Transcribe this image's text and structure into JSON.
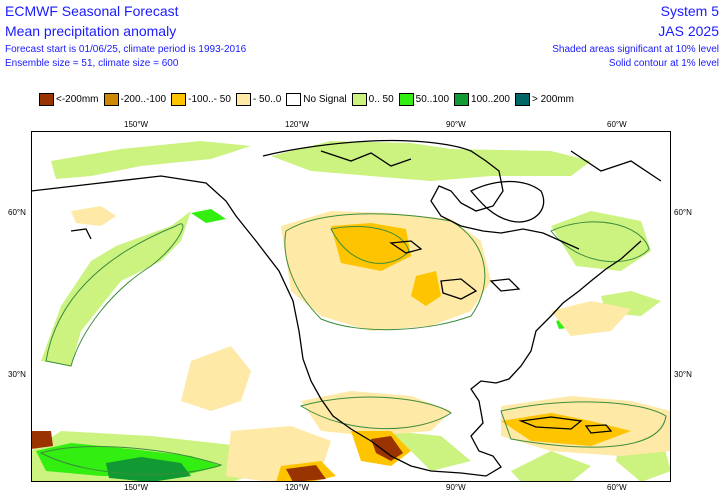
{
  "header": {
    "title": "ECMWF Seasonal Forecast",
    "subtitle": "Mean precipitation anomaly",
    "forecast_line": "Forecast start is 01/06/25, climate period is 1993-2016",
    "ensemble_line": "Ensemble size = 51, climate size = 600",
    "system": "System 5",
    "season": "JAS 2025",
    "significance_10": "Shaded areas significant at 10% level",
    "significance_1": "Solid contour at 1% level"
  },
  "legend": [
    {
      "label": "<-200mm",
      "color": "#993300"
    },
    {
      "label": "-200..-100",
      "color": "#cc8800"
    },
    {
      "label": "-100..- 50",
      "color": "#ffc400"
    },
    {
      "label": "- 50..0",
      "color": "#ffe9a6"
    },
    {
      "label": "No Signal",
      "color": "#ffffff"
    },
    {
      "label": "0.. 50",
      "color": "#ccf280"
    },
    {
      "label": "50..100",
      "color": "#33ee11"
    },
    {
      "label": "100..200",
      "color": "#119933"
    },
    {
      "label": "> 200mm",
      "color": "#006666"
    }
  ],
  "axes": {
    "lon_top": [
      "150°W",
      "120°W",
      "90°W",
      "60°W"
    ],
    "lon_bottom": [
      "150°W",
      "120°W",
      "90°W",
      "60°W"
    ],
    "lat_left": [
      "60°N",
      "30°N"
    ],
    "lat_right": [
      "60°N",
      "30°N"
    ]
  }
}
